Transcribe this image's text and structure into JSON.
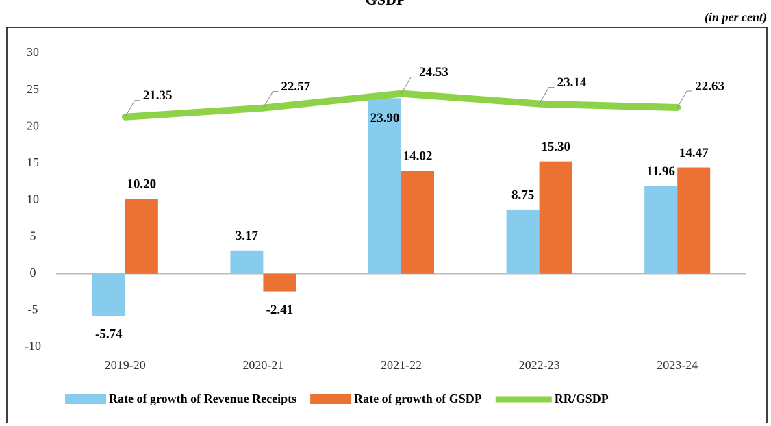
{
  "chart_data": {
    "type": "bar",
    "title": "GSDP",
    "subtitle": "(in per cent)",
    "categories": [
      "2019-20",
      "2020-21",
      "2021-22",
      "2022-23",
      "2023-24"
    ],
    "series": [
      {
        "name": "Rate of growth of Revenue Receipts",
        "type": "bar",
        "color": "#87ccec",
        "values": [
          -5.74,
          3.17,
          23.9,
          8.75,
          11.96
        ],
        "value_labels": [
          "-5.74",
          "3.17",
          "23.90",
          "8.75",
          "11.96"
        ]
      },
      {
        "name": "Rate of growth of GSDP",
        "type": "bar",
        "color": "#ec7233",
        "values": [
          10.2,
          -2.41,
          14.02,
          15.3,
          14.47
        ],
        "value_labels": [
          "10.20",
          "-2.41",
          "14.02",
          "15.30",
          "14.47"
        ]
      },
      {
        "name": "RR/GSDP",
        "type": "line",
        "color": "#8ed24a",
        "values": [
          21.35,
          22.57,
          24.53,
          23.14,
          22.63
        ],
        "value_labels": [
          "21.35",
          "22.57",
          "24.53",
          "23.14",
          "22.63"
        ]
      }
    ],
    "ylim": [
      -10,
      30
    ],
    "yticks": [
      -10,
      -5,
      0,
      5,
      10,
      15,
      20,
      25,
      30
    ],
    "grid": false,
    "legend": "bottom"
  }
}
